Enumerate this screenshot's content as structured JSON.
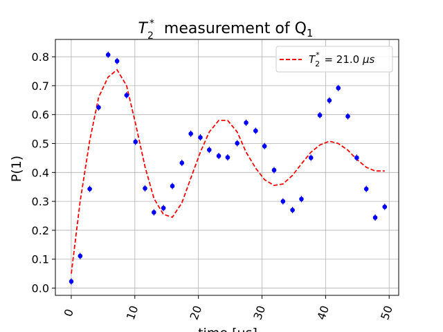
{
  "chart_data": {
    "type": "scatter",
    "title": {
      "symbol": "T",
      "sub": "2",
      "sup": "*",
      "text": "measurement of Q",
      "text_sub": "1"
    },
    "xlabel": "time [μs]",
    "ylabel": "P(1)",
    "xlim": [
      -2.5,
      51.5
    ],
    "ylim": [
      -0.025,
      0.86
    ],
    "xticks": [
      0,
      10,
      20,
      30,
      40,
      50
    ],
    "yticks": [
      0.0,
      0.1,
      0.2,
      0.3,
      0.4,
      0.5,
      0.6,
      0.7,
      0.8
    ],
    "xtick_labels": [
      "0",
      "10",
      "20",
      "30",
      "40",
      "50"
    ],
    "ytick_labels": [
      "0.0",
      "0.1",
      "0.2",
      "0.3",
      "0.4",
      "0.5",
      "0.6",
      "0.7",
      "0.8"
    ],
    "grid": true,
    "legend": {
      "placement": "top-right",
      "symbol": "T",
      "sub": "2",
      "sup": "*",
      "text": " = 21.0 ",
      "unit": "μs"
    },
    "series": [
      {
        "kind": "errorbar-points",
        "color": "#0000ff",
        "x": [
          0.0,
          1.4,
          2.9,
          4.3,
          5.8,
          7.2,
          8.7,
          10.1,
          11.6,
          13.0,
          14.5,
          15.9,
          17.4,
          18.8,
          20.3,
          21.7,
          23.2,
          24.6,
          26.1,
          27.5,
          29.0,
          30.4,
          31.9,
          33.3,
          34.8,
          36.2,
          37.7,
          39.1,
          40.6,
          42.0,
          43.5,
          44.9,
          46.4,
          47.8,
          49.3
        ],
        "y": [
          0.023,
          0.111,
          0.343,
          0.625,
          0.807,
          0.785,
          0.667,
          0.506,
          0.345,
          0.262,
          0.277,
          0.353,
          0.433,
          0.534,
          0.521,
          0.478,
          0.457,
          0.452,
          0.501,
          0.572,
          0.544,
          0.491,
          0.408,
          0.3,
          0.27,
          0.308,
          0.451,
          0.598,
          0.649,
          0.692,
          0.594,
          0.451,
          0.343,
          0.244,
          0.281
        ],
        "yerr": 0.011
      },
      {
        "kind": "fit-line",
        "color": "#ff0000",
        "dashed": true,
        "x": [
          0.0,
          1.4,
          2.9,
          4.3,
          5.8,
          7.2,
          8.7,
          10.1,
          11.6,
          13.0,
          14.5,
          15.9,
          17.4,
          18.8,
          20.3,
          21.7,
          23.2,
          24.6,
          26.1,
          27.5,
          29.0,
          30.4,
          31.9,
          33.3,
          34.8,
          36.2,
          37.7,
          39.1,
          40.6,
          42.0,
          43.5,
          44.9,
          46.4,
          47.8,
          49.3
        ],
        "y": [
          0.05,
          0.3,
          0.51,
          0.66,
          0.73,
          0.755,
          0.7,
          0.57,
          0.42,
          0.31,
          0.255,
          0.245,
          0.295,
          0.38,
          0.47,
          0.54,
          0.58,
          0.58,
          0.54,
          0.47,
          0.415,
          0.375,
          0.355,
          0.36,
          0.39,
          0.43,
          0.47,
          0.495,
          0.508,
          0.5,
          0.477,
          0.445,
          0.418,
          0.405,
          0.405
        ]
      }
    ]
  }
}
